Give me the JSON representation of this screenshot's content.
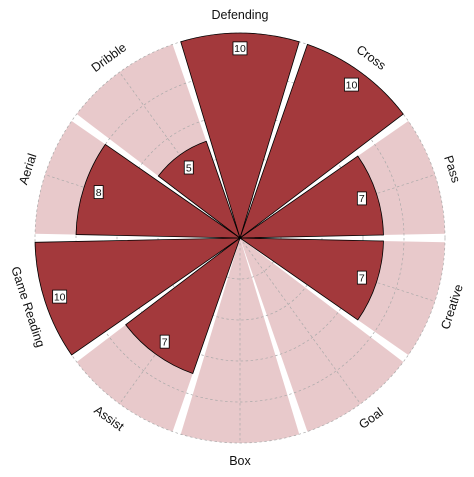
{
  "chart_data": {
    "type": "pizza",
    "categories": [
      "Defending",
      "Cross",
      "Pass",
      "Creative",
      "Goal",
      "Box",
      "Assist",
      "Game Reading",
      "Aerial",
      "Dribble"
    ],
    "values": [
      10,
      10,
      7,
      7,
      0,
      0,
      7,
      10,
      8,
      5
    ],
    "value_labels": [
      "10",
      "10",
      "7",
      "7",
      "",
      "",
      "7",
      "10",
      "8",
      "5"
    ],
    "max": 10,
    "grid": true,
    "colors": {
      "slice": "#a3393c",
      "slice_edge": "#000000",
      "background_slice": "#e8c9cb",
      "grid": "#a9a9a9",
      "box_fill": "#ffffff",
      "box_edge": "#000000"
    }
  }
}
